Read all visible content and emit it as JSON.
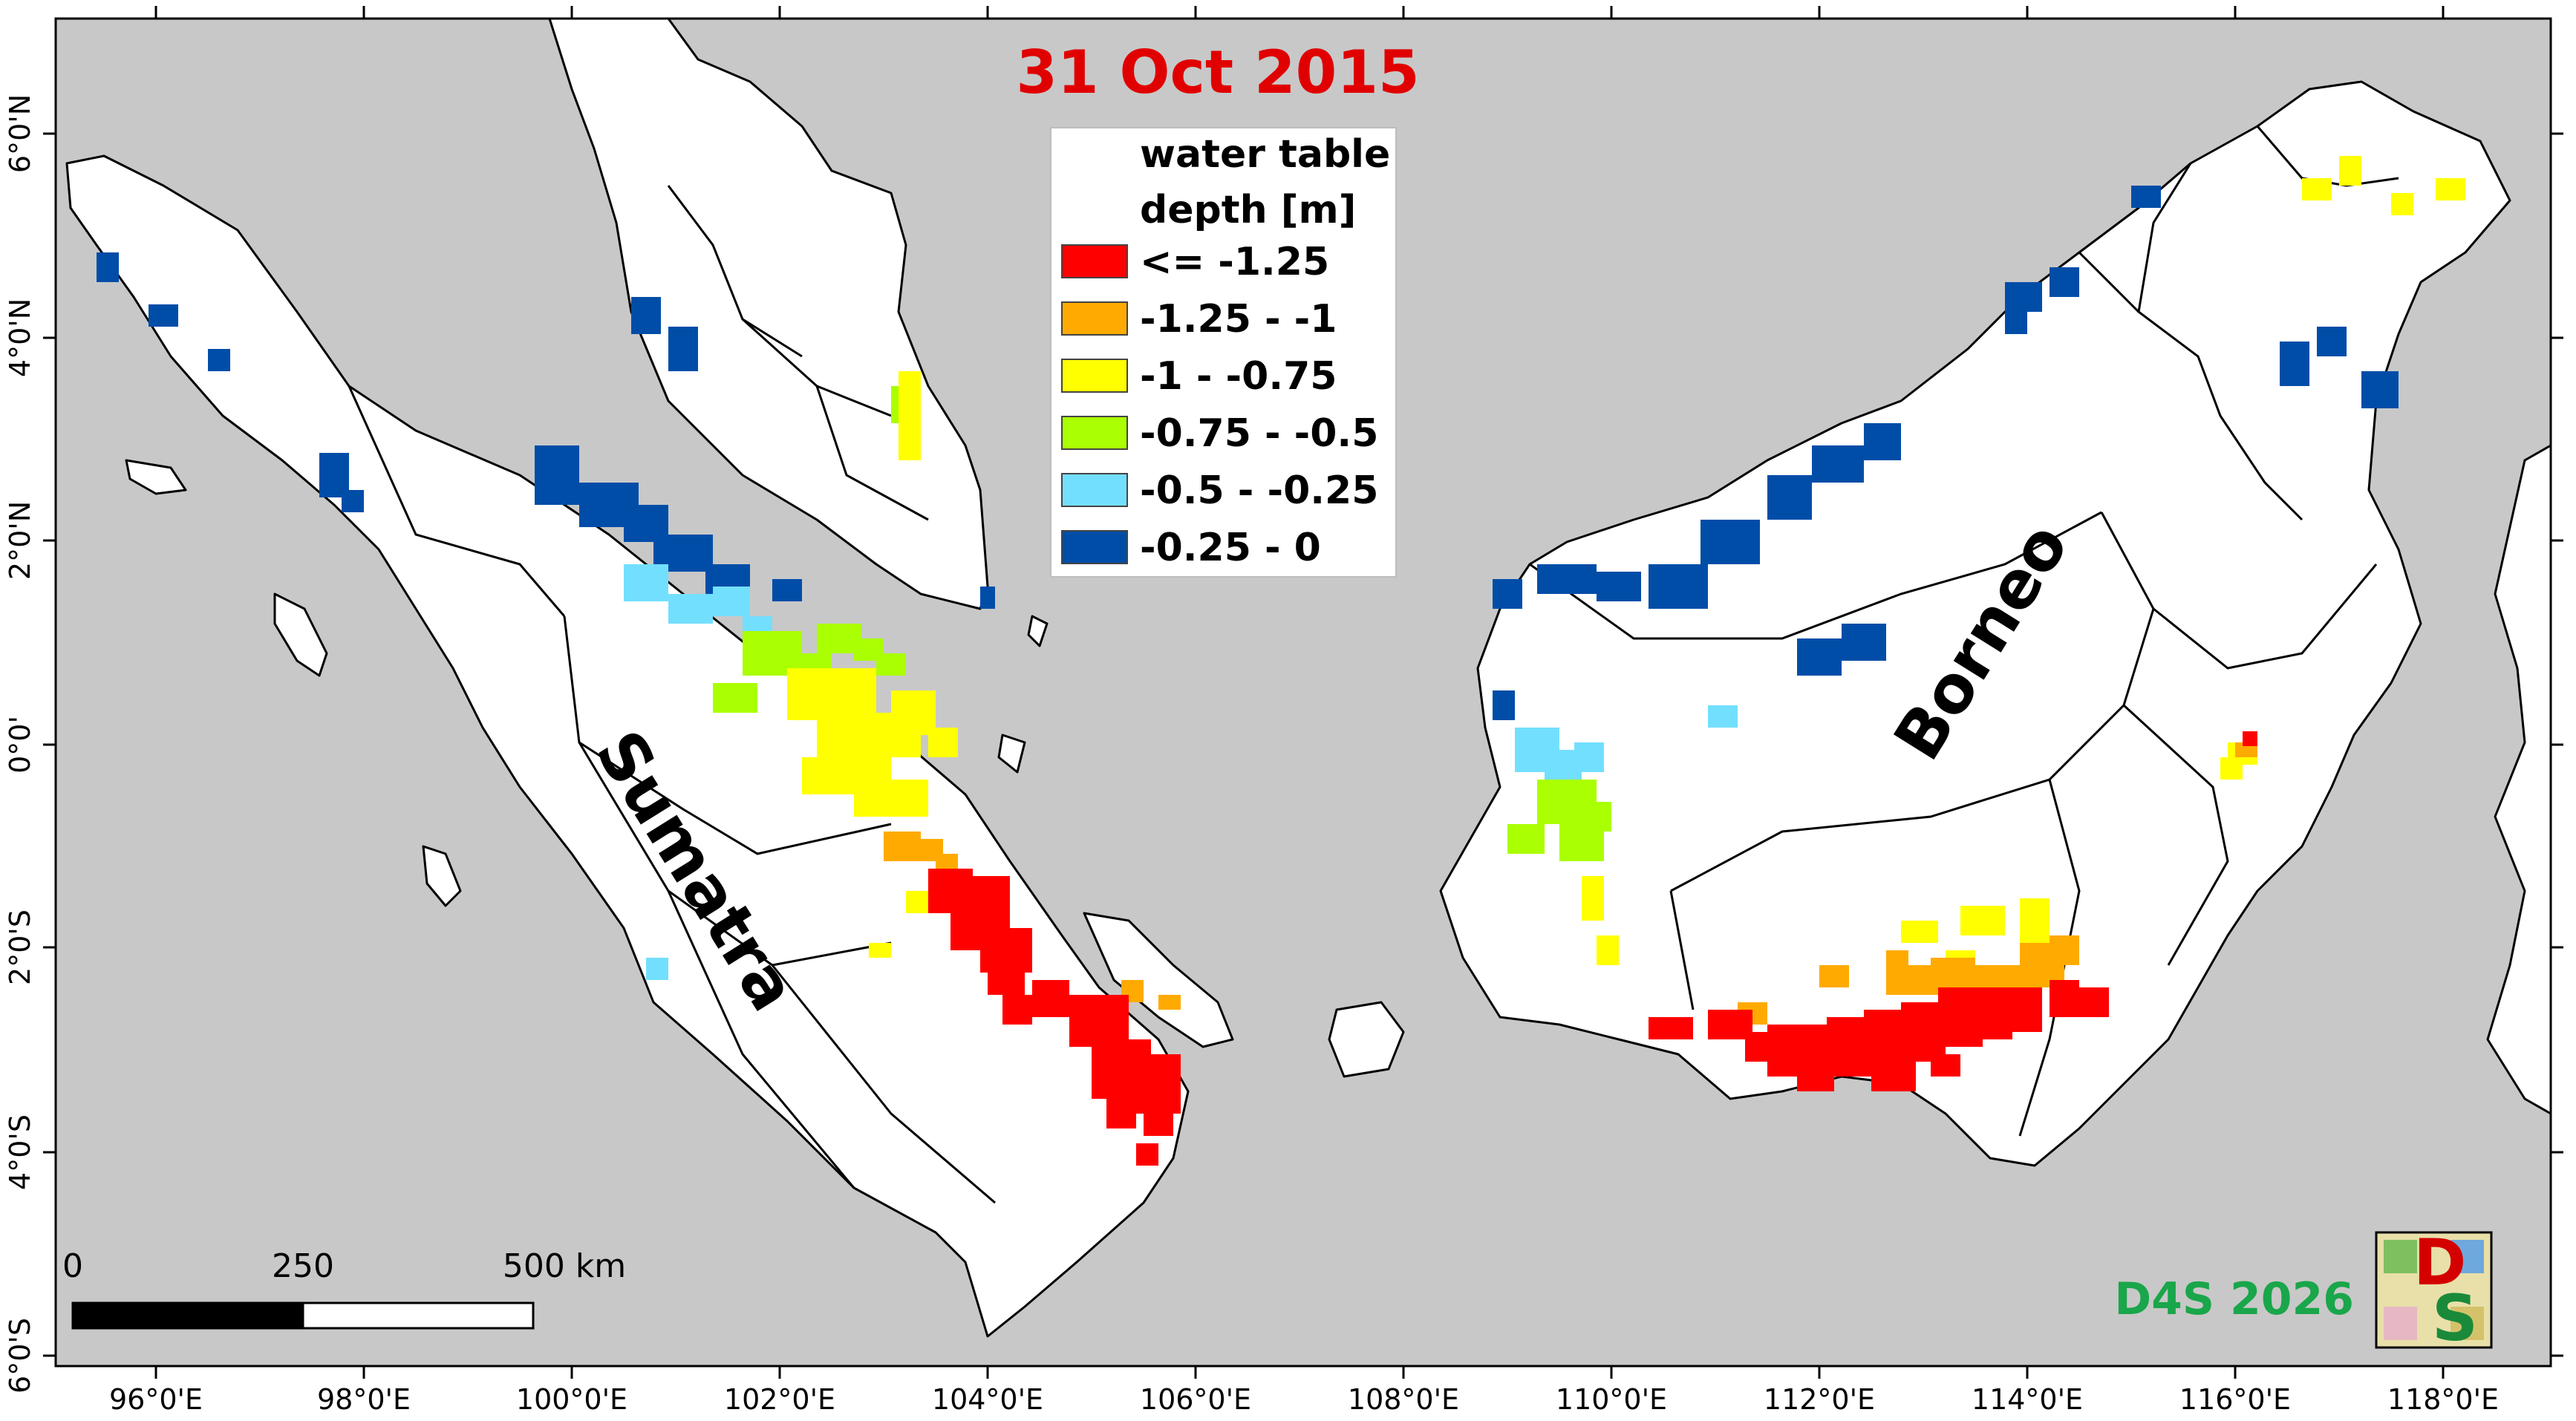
{
  "title": "31 Oct 2015",
  "legend": {
    "title_line1": "water table",
    "title_line2": "depth [m]",
    "items": [
      {
        "label": "<= -1.25",
        "color": "#ff0000"
      },
      {
        "label": "-1.25 - -1",
        "color": "#ffaa00"
      },
      {
        "label": "-1 - -0.75",
        "color": "#ffff00"
      },
      {
        "label": "-0.75 - -0.5",
        "color": "#aaff00"
      },
      {
        "label": "-0.5 - -0.25",
        "color": "#73dfff"
      },
      {
        "label": "-0.25 - 0",
        "color": "#004da8"
      }
    ]
  },
  "labels": {
    "sumatra": "Sumatra",
    "borneo": "Borneo"
  },
  "axes": {
    "x_ticks": [
      "96°0'E",
      "98°0'E",
      "100°0'E",
      "102°0'E",
      "104°0'E",
      "106°0'E",
      "108°0'E",
      "110°0'E",
      "112°0'E",
      "114°0'E",
      "116°0'E",
      "118°0'E"
    ],
    "y_ticks": [
      "6°0'N",
      "4°0'N",
      "2°0'N",
      "0°0'",
      "2°0'S",
      "4°0'S",
      "6°0'S"
    ]
  },
  "scale_bar": {
    "label_0": "0",
    "label_250": "250",
    "label_500": "500 km"
  },
  "credit": "D4S 2026",
  "logo": {
    "text_d": "D",
    "text_s": "S"
  },
  "colors": {
    "sea": "#c8c8c8",
    "land": "#ffffff",
    "title": "#e00000",
    "credit": "#1aa64a"
  }
}
